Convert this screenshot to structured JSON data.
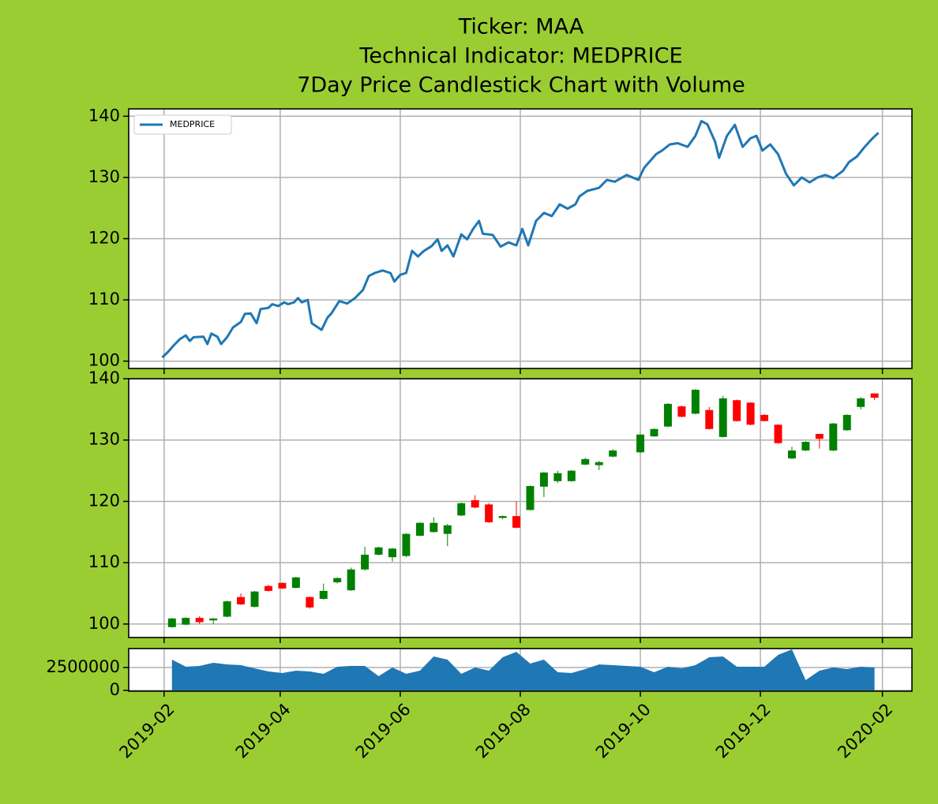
{
  "chart_data": [
    {
      "type": "line",
      "title": [
        "Ticker: MAA",
        "Technical Indicator: MEDPRICE",
        "7Day Price Candlestick Chart with Volume"
      ],
      "ylim": [
        98.8,
        141.2
      ],
      "yticks": [
        100,
        110,
        120,
        130,
        140
      ],
      "grid": true,
      "legend": "upper left",
      "series": [
        {
          "name": "MEDPRICE",
          "color": "#1f77b4",
          "x": [
            "2019-01-31",
            "2019-02-03",
            "2019-02-06",
            "2019-02-09",
            "2019-02-12",
            "2019-02-14",
            "2019-02-16",
            "2019-02-21",
            "2019-02-23",
            "2019-02-25",
            "2019-02-28",
            "2019-03-02",
            "2019-03-05",
            "2019-03-08",
            "2019-03-12",
            "2019-03-14",
            "2019-03-17",
            "2019-03-20",
            "2019-03-22",
            "2019-03-26",
            "2019-03-28",
            "2019-03-31",
            "2019-04-03",
            "2019-04-05",
            "2019-04-08",
            "2019-04-10",
            "2019-04-12",
            "2019-04-15",
            "2019-04-17",
            "2019-04-22",
            "2019-04-25",
            "2019-04-27",
            "2019-05-01",
            "2019-05-05",
            "2019-05-09",
            "2019-05-13",
            "2019-05-16",
            "2019-05-19",
            "2019-05-23",
            "2019-05-27",
            "2019-05-29",
            "2019-06-01",
            "2019-06-04",
            "2019-06-07",
            "2019-06-10",
            "2019-06-13",
            "2019-06-17",
            "2019-06-20",
            "2019-06-22",
            "2019-06-25",
            "2019-06-28",
            "2019-07-02",
            "2019-07-05",
            "2019-07-08",
            "2019-07-11",
            "2019-07-13",
            "2019-07-18",
            "2019-07-22",
            "2019-07-26",
            "2019-07-30",
            "2019-08-02",
            "2019-08-05",
            "2019-08-09",
            "2019-08-13",
            "2019-08-17",
            "2019-08-21",
            "2019-08-25",
            "2019-08-29",
            "2019-08-31",
            "2019-09-04",
            "2019-09-10",
            "2019-09-14",
            "2019-09-18",
            "2019-09-24",
            "2019-09-30",
            "2019-10-03",
            "2019-10-09",
            "2019-10-12",
            "2019-10-16",
            "2019-10-20",
            "2019-10-25",
            "2019-10-29",
            "2019-11-01",
            "2019-11-04",
            "2019-11-08",
            "2019-11-10",
            "2019-11-14",
            "2019-11-18",
            "2019-11-22",
            "2019-11-26",
            "2019-11-29",
            "2019-12-02",
            "2019-12-06",
            "2019-12-10",
            "2019-12-14",
            "2019-12-18",
            "2019-12-22",
            "2019-12-26",
            "2019-12-30",
            "2020-01-03",
            "2020-01-07",
            "2020-01-12",
            "2020-01-15",
            "2020-01-19",
            "2020-01-23",
            "2020-01-27",
            "2020-01-30"
          ],
          "values": [
            100.6,
            101.5,
            102.6,
            103.6,
            104.2,
            103.3,
            103.9,
            104.0,
            102.8,
            104.5,
            104.0,
            102.8,
            103.9,
            105.5,
            106.4,
            107.7,
            107.8,
            106.2,
            108.5,
            108.7,
            109.3,
            109.0,
            109.6,
            109.3,
            109.6,
            110.3,
            109.6,
            110.0,
            106.2,
            105.1,
            107.1,
            107.8,
            109.8,
            109.4,
            110.3,
            111.6,
            113.9,
            114.4,
            114.8,
            114.4,
            113.0,
            114.1,
            114.4,
            118.0,
            117.1,
            118.0,
            118.8,
            119.9,
            118.0,
            118.9,
            117.1,
            120.7,
            119.9,
            121.6,
            122.9,
            120.8,
            120.6,
            118.7,
            119.4,
            118.9,
            121.6,
            118.9,
            122.9,
            124.2,
            123.7,
            125.6,
            124.9,
            125.6,
            126.9,
            127.8,
            128.3,
            129.6,
            129.3,
            130.4,
            129.6,
            131.6,
            133.8,
            134.4,
            135.4,
            135.6,
            135.0,
            136.8,
            139.2,
            138.7,
            135.8,
            133.2,
            136.8,
            138.6,
            135.0,
            136.4,
            136.8,
            134.4,
            135.4,
            133.8,
            130.6,
            128.7,
            130.0,
            129.2,
            130.0,
            130.4,
            129.9,
            131.1,
            132.5,
            133.4,
            135.0,
            136.4,
            137.3
          ]
        }
      ]
    },
    {
      "type": "candlestick",
      "ylim": [
        97.8,
        140
      ],
      "yticks": [
        100,
        110,
        120,
        130,
        140
      ],
      "grid": true,
      "up_color": "green",
      "down_color": "red",
      "x": [
        "2019-02-05",
        "2019-02-12",
        "2019-02-19",
        "2019-02-26",
        "2019-03-05",
        "2019-03-12",
        "2019-03-19",
        "2019-03-26",
        "2019-04-02",
        "2019-04-09",
        "2019-04-16",
        "2019-04-23",
        "2019-04-30",
        "2019-05-07",
        "2019-05-14",
        "2019-05-21",
        "2019-05-28",
        "2019-06-04",
        "2019-06-11",
        "2019-06-18",
        "2019-06-25",
        "2019-07-02",
        "2019-07-09",
        "2019-07-16",
        "2019-07-23",
        "2019-07-30",
        "2019-08-06",
        "2019-08-13",
        "2019-08-20",
        "2019-08-27",
        "2019-09-03",
        "2019-09-10",
        "2019-09-17",
        "2019-10-01",
        "2019-10-08",
        "2019-10-15",
        "2019-10-22",
        "2019-10-29",
        "2019-11-05",
        "2019-11-12",
        "2019-11-19",
        "2019-11-26",
        "2019-12-03",
        "2019-12-10",
        "2019-12-17",
        "2019-12-24",
        "2019-12-31",
        "2020-01-07",
        "2020-01-14",
        "2020-01-21",
        "2020-01-28"
      ],
      "open": [
        99.5,
        99.9,
        101.0,
        100.6,
        101.2,
        104.4,
        102.8,
        106.2,
        106.7,
        105.9,
        104.4,
        104.1,
        106.8,
        105.5,
        108.9,
        111.3,
        110.9,
        111.1,
        114.4,
        115.0,
        114.7,
        117.7,
        120.2,
        119.5,
        117.3,
        117.6,
        118.6,
        122.4,
        123.3,
        123.3,
        126.0,
        125.9,
        127.3,
        128.0,
        130.6,
        132.2,
        135.5,
        134.3,
        134.9,
        130.5,
        136.5,
        136.1,
        134.1,
        132.5,
        127.0,
        128.3,
        131.0,
        128.3,
        131.6,
        135.4,
        137.6
      ],
      "high": [
        101.0,
        101.1,
        101.3,
        101.0,
        103.8,
        105.0,
        105.4,
        106.4,
        106.8,
        107.7,
        104.5,
        106.6,
        107.6,
        109.2,
        112.6,
        112.6,
        112.4,
        114.8,
        116.6,
        117.4,
        116.3,
        119.8,
        121.0,
        119.7,
        117.7,
        120.0,
        122.6,
        124.8,
        125.0,
        125.1,
        127.1,
        126.6,
        128.5,
        130.9,
        131.9,
        136.0,
        135.6,
        138.3,
        135.4,
        137.2,
        136.6,
        136.2,
        134.2,
        132.6,
        128.9,
        129.8,
        131.0,
        132.8,
        134.2,
        137.0,
        137.6
      ],
      "low": [
        99.4,
        99.8,
        100.0,
        100.0,
        101.1,
        103.1,
        102.7,
        105.3,
        105.7,
        105.8,
        102.5,
        104.0,
        106.6,
        105.4,
        108.7,
        111.2,
        110.2,
        110.9,
        114.3,
        114.9,
        112.7,
        117.6,
        118.9,
        116.5,
        117.1,
        115.6,
        118.5,
        120.7,
        123.0,
        123.2,
        125.9,
        125.1,
        127.2,
        127.9,
        130.5,
        132.1,
        133.7,
        134.2,
        131.7,
        130.4,
        133.0,
        132.4,
        133.0,
        129.4,
        126.9,
        128.2,
        128.6,
        128.2,
        131.5,
        135.0,
        136.5
      ],
      "close": [
        100.9,
        101.0,
        100.3,
        100.9,
        103.7,
        103.2,
        105.3,
        105.4,
        105.8,
        107.6,
        102.7,
        105.4,
        107.5,
        108.9,
        111.3,
        112.5,
        112.3,
        114.7,
        116.5,
        116.5,
        116.1,
        119.7,
        119.0,
        116.6,
        117.6,
        115.7,
        122.5,
        124.7,
        124.6,
        125.0,
        126.9,
        126.4,
        128.3,
        130.9,
        131.8,
        135.9,
        133.8,
        138.2,
        131.8,
        136.8,
        133.1,
        132.5,
        133.1,
        129.5,
        128.3,
        129.7,
        130.2,
        132.7,
        134.1,
        136.8,
        136.9
      ]
    },
    {
      "type": "area",
      "color": "#1f77b4",
      "ylim": [
        -86000,
        4570000
      ],
      "yticks": [
        0,
        2500000
      ],
      "grid": true,
      "xlim": [
        "2019-01-14",
        "2020-02-16"
      ],
      "xticks": [
        {
          "value": "2019-02-01",
          "label": "2019-02"
        },
        {
          "value": "2019-04-01",
          "label": "2019-04"
        },
        {
          "value": "2019-06-01",
          "label": "2019-06"
        },
        {
          "value": "2019-08-01",
          "label": "2019-08"
        },
        {
          "value": "2019-10-01",
          "label": "2019-10"
        },
        {
          "value": "2019-12-01",
          "label": "2019-12"
        },
        {
          "value": "2020-02-01",
          "label": "2020-02"
        }
      ],
      "x": [
        "2019-02-05",
        "2019-02-12",
        "2019-02-19",
        "2019-02-26",
        "2019-03-05",
        "2019-03-12",
        "2019-03-19",
        "2019-03-26",
        "2019-04-02",
        "2019-04-09",
        "2019-04-16",
        "2019-04-23",
        "2019-04-30",
        "2019-05-07",
        "2019-05-14",
        "2019-05-21",
        "2019-05-28",
        "2019-06-04",
        "2019-06-11",
        "2019-06-18",
        "2019-06-25",
        "2019-07-02",
        "2019-07-09",
        "2019-07-16",
        "2019-07-23",
        "2019-07-30",
        "2019-08-06",
        "2019-08-13",
        "2019-08-20",
        "2019-08-27",
        "2019-09-03",
        "2019-09-10",
        "2019-09-17",
        "2019-10-01",
        "2019-10-08",
        "2019-10-15",
        "2019-10-22",
        "2019-10-29",
        "2019-11-05",
        "2019-11-12",
        "2019-11-19",
        "2019-11-26",
        "2019-12-03",
        "2019-12-10",
        "2019-12-17",
        "2019-12-24",
        "2019-12-31",
        "2020-01-07",
        "2020-01-14",
        "2020-01-21",
        "2020-01-28"
      ],
      "values": [
        3360000,
        2590000,
        2670000,
        3020000,
        2840000,
        2760000,
        2410000,
        2070000,
        1900000,
        2160000,
        2070000,
        1810000,
        2590000,
        2670000,
        2670000,
        1550000,
        2500000,
        1810000,
        2160000,
        3710000,
        3360000,
        1810000,
        2500000,
        2160000,
        3620000,
        4220000,
        2930000,
        3360000,
        1980000,
        1900000,
        2330000,
        2840000,
        2760000,
        2590000,
        1980000,
        2590000,
        2410000,
        2760000,
        3620000,
        3710000,
        2590000,
        2590000,
        2590000,
        3880000,
        4480000,
        1120000,
        2160000,
        2500000,
        2330000,
        2590000,
        2500000
      ]
    }
  ]
}
